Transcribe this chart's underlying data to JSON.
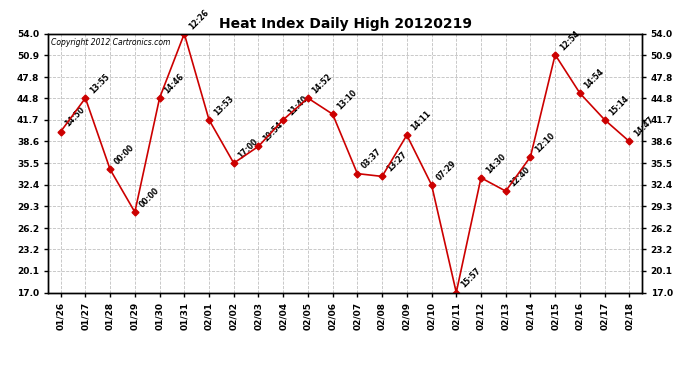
{
  "title": "Heat Index Daily High 20120219",
  "copyright_text": "Copyright 2012 Cartronics.com",
  "x_labels": [
    "01/26",
    "01/27",
    "01/28",
    "01/29",
    "01/30",
    "01/31",
    "02/01",
    "02/02",
    "02/03",
    "02/04",
    "02/05",
    "02/06",
    "02/07",
    "02/08",
    "02/09",
    "02/10",
    "02/11",
    "02/12",
    "02/13",
    "02/14",
    "02/15",
    "02/16",
    "02/17",
    "02/18"
  ],
  "y_values": [
    40.0,
    44.8,
    34.6,
    28.5,
    44.8,
    54.0,
    41.7,
    35.5,
    37.9,
    41.7,
    44.8,
    42.5,
    34.0,
    33.6,
    39.5,
    32.4,
    17.0,
    33.4,
    31.5,
    36.4,
    51.0,
    45.5,
    41.7,
    38.6
  ],
  "point_labels": [
    "14:50",
    "13:55",
    "00:00",
    "00:00",
    "14:46",
    "12:26",
    "13:53",
    "17:00",
    "19:54",
    "11:40",
    "14:52",
    "13:10",
    "03:37",
    "13:27",
    "14:11",
    "07:29",
    "15:57",
    "14:30",
    "12:40",
    "12:10",
    "12:54",
    "14:54",
    "15:14",
    "14:47"
  ],
  "line_color": "#cc0000",
  "marker_color": "#cc0000",
  "background_color": "#ffffff",
  "grid_color": "#c0c0c0",
  "ylim_min": 17.0,
  "ylim_max": 54.0,
  "yticks": [
    17.0,
    20.1,
    23.2,
    26.2,
    29.3,
    32.4,
    35.5,
    38.6,
    41.7,
    44.8,
    47.8,
    50.9,
    54.0
  ]
}
